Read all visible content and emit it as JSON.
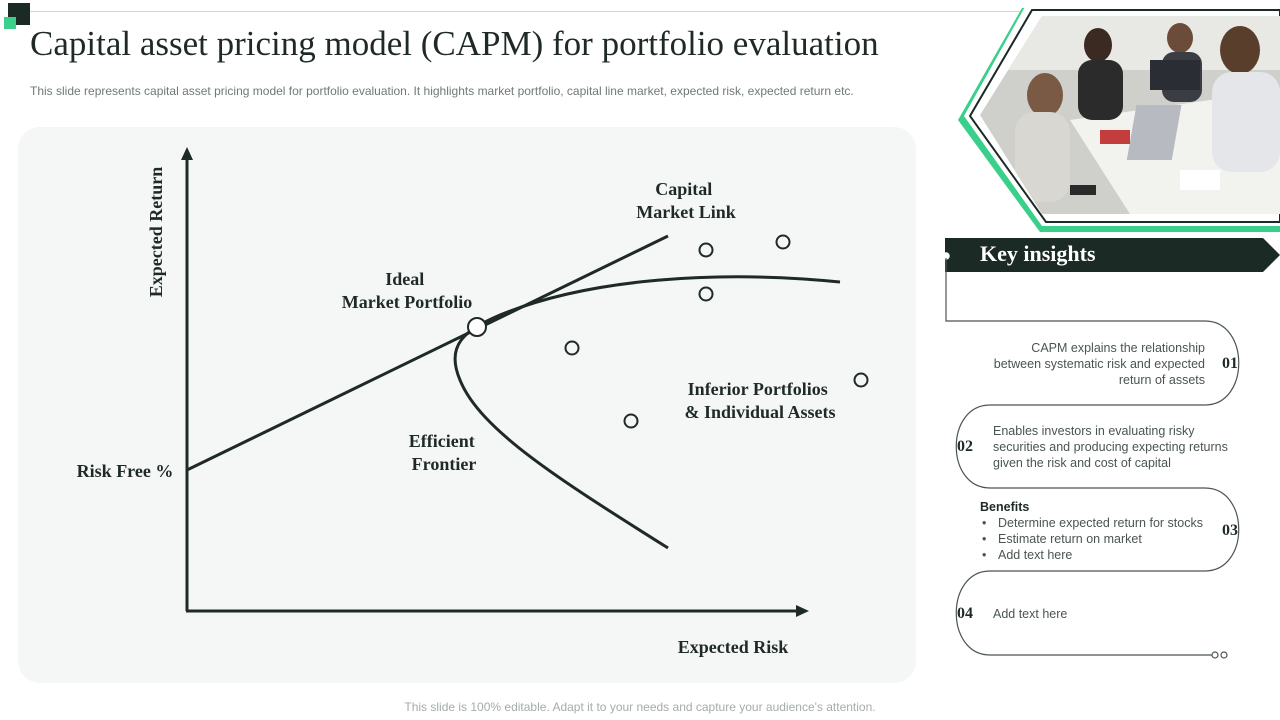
{
  "header": {
    "title": "Capital asset pricing model (CAPM) for portfolio evaluation",
    "subtitle": "This slide represents capital asset pricing model for portfolio evaluation. It highlights market portfolio, capital line market, expected risk, expected return etc."
  },
  "diagram": {
    "y_axis_label": "Expected Return",
    "x_axis_label": "Expected Risk",
    "risk_free_label": "Risk Free %",
    "capital_market_link": [
      "Capital",
      "Market Link"
    ],
    "ideal_market_portfolio": [
      "Ideal",
      "Market Portfolio"
    ],
    "efficient_frontier": [
      "Efficient",
      "Frontier"
    ],
    "inferior_portfolios": [
      "Inferior Portfolios",
      "& Individual Assets"
    ]
  },
  "key_insights": {
    "title": "Key insights",
    "items": [
      {
        "num": "01",
        "lines": [
          "CAPM explains the relationship",
          "between  systematic risk and expected",
          "return of assets"
        ]
      },
      {
        "num": "02",
        "lines": [
          "Enables investors  in evaluating  risky",
          "securities and producing  expecting returns",
          "given  the risk and cost of capital"
        ]
      },
      {
        "num": "03",
        "heading": "Benefits",
        "bullets": [
          "Determine  expected return for stocks",
          "Estimate return  on market",
          "Add text here"
        ]
      },
      {
        "num": "04",
        "lines": [
          "Add text here"
        ]
      }
    ]
  },
  "footer": "This slide is 100% editable. Adapt it to your needs and capture your audience's attention.",
  "colors": {
    "dark": "#1b2a25",
    "accent_green": "#3ad08b",
    "panel": "#f4f7f6"
  }
}
